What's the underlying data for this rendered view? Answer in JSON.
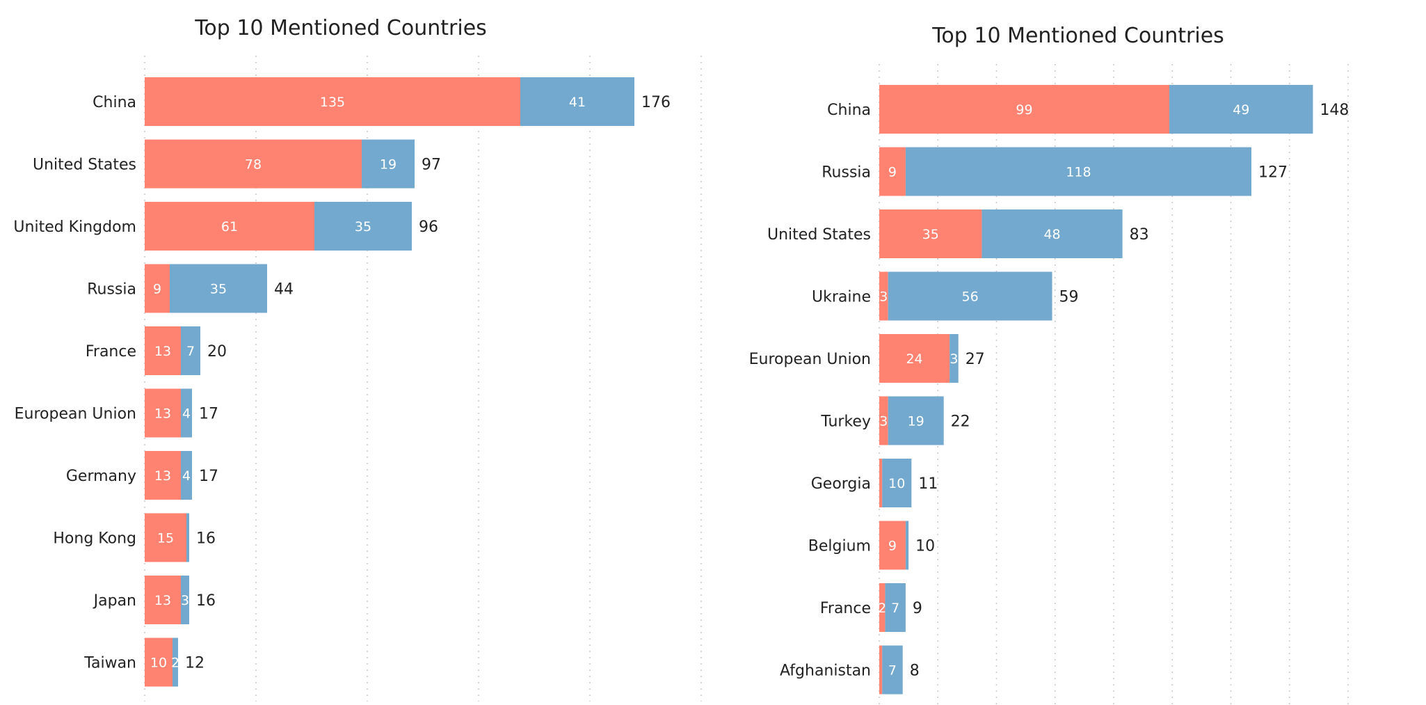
{
  "colors": {
    "segment_1": "#ff8370",
    "segment_2": "#74a9cf"
  },
  "chart_data": [
    {
      "type": "bar",
      "orientation": "horizontal",
      "stacked": true,
      "title": "Top 10 Mentioned Countries",
      "categories": [
        "China",
        "United States",
        "United Kingdom",
        "Russia",
        "France",
        "European Union",
        "Germany",
        "Hong Kong",
        "Japan",
        "Taiwan"
      ],
      "series": [
        {
          "values": [
            135,
            78,
            61,
            9,
            13,
            13,
            13,
            15,
            13,
            10
          ]
        },
        {
          "values": [
            41,
            19,
            35,
            35,
            7,
            4,
            4,
            1,
            3,
            2
          ]
        }
      ],
      "totals": [
        176,
        97,
        96,
        44,
        20,
        17,
        17,
        16,
        16,
        12
      ],
      "xlim": [
        0,
        200
      ],
      "grid": true,
      "legend": "none"
    },
    {
      "type": "bar",
      "orientation": "horizontal",
      "stacked": true,
      "title": "Top 10 Mentioned Countries",
      "categories": [
        "China",
        "Russia",
        "United States",
        "Ukraine",
        "European Union",
        "Turkey",
        "Georgia",
        "Belgium",
        "France",
        "Afghanistan"
      ],
      "series": [
        {
          "values": [
            99,
            9,
            35,
            3,
            24,
            3,
            1,
            9,
            2,
            1
          ]
        },
        {
          "values": [
            49,
            118,
            48,
            56,
            3,
            19,
            10,
            1,
            7,
            7
          ]
        }
      ],
      "totals": [
        148,
        127,
        83,
        59,
        27,
        22,
        11,
        10,
        9,
        8
      ],
      "xlim": [
        0,
        160
      ],
      "grid": true,
      "legend": "none"
    }
  ]
}
